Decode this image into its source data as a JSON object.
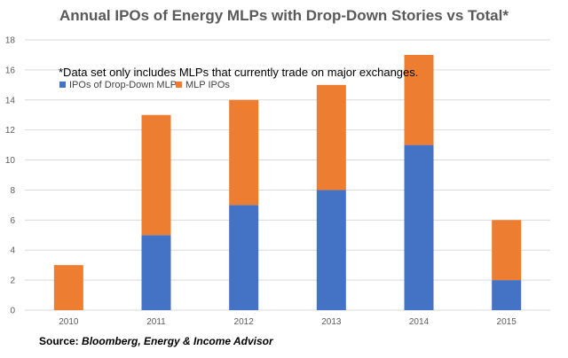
{
  "colors": {
    "dropdown": "#4472c4",
    "mlp": "#ed7d31",
    "grid": "#d9d9d9",
    "axis_text": "#595959"
  },
  "chart_data": {
    "type": "bar",
    "stacked": true,
    "title": "Annual IPOs of Energy MLPs with Drop-Down Stories vs Total*",
    "note": "*Data set only includes MLPs that currently trade on major exchanges.",
    "categories": [
      "2010",
      "2011",
      "2012",
      "2013",
      "2014",
      "2015"
    ],
    "series": [
      {
        "name": "IPOs of Drop-Down MLPs",
        "values": [
          0,
          5,
          7,
          8,
          11,
          2
        ],
        "color": "#4472c4"
      },
      {
        "name": "MLP IPOs",
        "values": [
          3,
          8,
          7,
          7,
          6,
          4
        ],
        "color": "#ed7d31"
      }
    ],
    "totals": [
      3,
      13,
      14,
      15,
      17,
      6
    ],
    "ylim": [
      0,
      18
    ],
    "yticks": [
      0,
      2,
      4,
      6,
      8,
      10,
      12,
      14,
      16,
      18
    ],
    "grid": true,
    "legend_position": "top-left"
  },
  "source": {
    "label": "Source:",
    "text": "Bloomberg, Energy & Income Advisor"
  }
}
